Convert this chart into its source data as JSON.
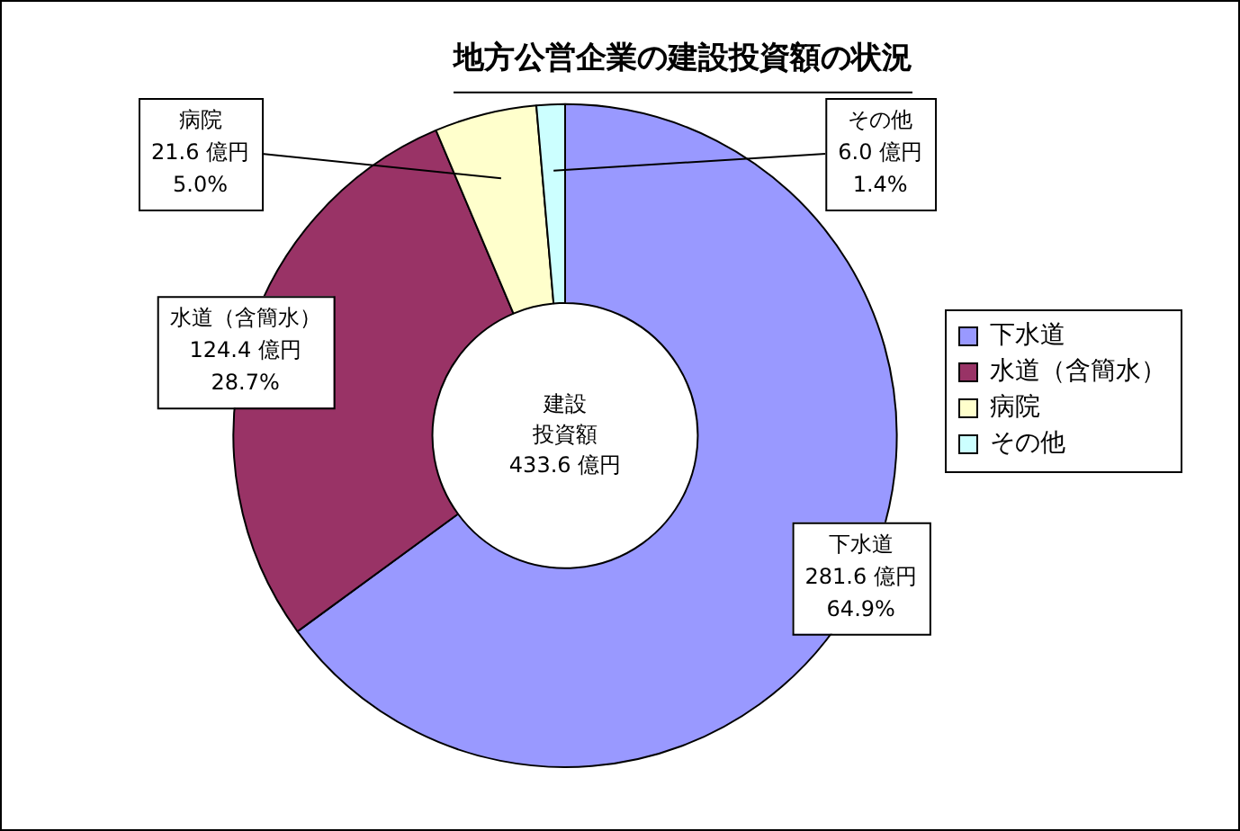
{
  "chart_data": {
    "type": "donut",
    "title": "地方公営企業の建設投資額の状況",
    "categories": [
      "下水道",
      "水道（含簡水）",
      "病院",
      "その他"
    ],
    "values": [
      281.6,
      124.4,
      21.6,
      6.0
    ],
    "colors": [
      "#9999ff",
      "#993366",
      "#ffffcc",
      "#ccffff"
    ],
    "value_labels": [
      "下水道\n281.6 億円\n64.9%",
      "水道（含簡水）\n124.4 億円\n28.7%",
      "病院\n21.6 億円\n5.0%",
      "その他\n6.0 億円\n1.4%"
    ],
    "annotations": [
      "建設投資額",
      "433.6 億円"
    ],
    "legend": "right"
  }
}
